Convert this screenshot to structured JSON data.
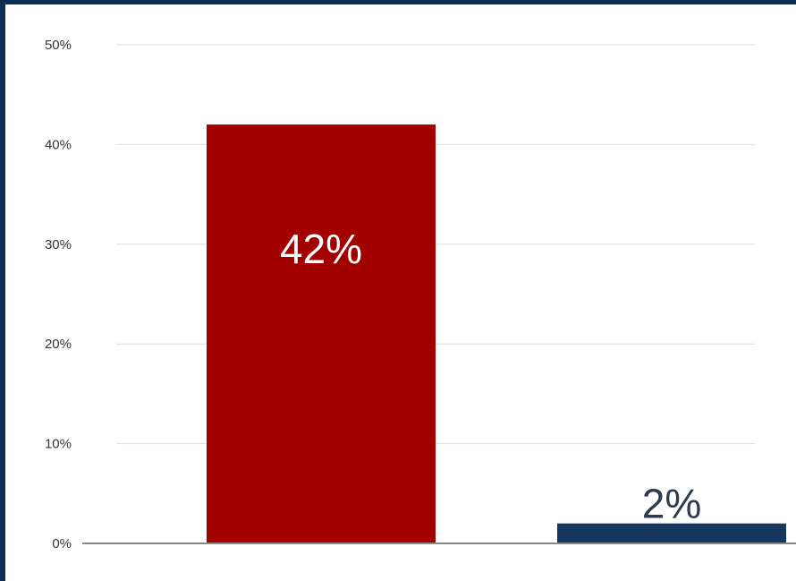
{
  "chart_data": {
    "type": "bar",
    "title": "",
    "xlabel": "",
    "ylabel": "",
    "categories": [
      "",
      ""
    ],
    "values": [
      42,
      2
    ],
    "data_labels": [
      "42%",
      "2%"
    ],
    "ylim": [
      0,
      50
    ],
    "y_ticks": [
      {
        "value": 0,
        "label": "0%"
      },
      {
        "value": 10,
        "label": "10%"
      },
      {
        "value": 20,
        "label": "20%"
      },
      {
        "value": 30,
        "label": "30%"
      },
      {
        "value": 40,
        "label": "40%"
      },
      {
        "value": 50,
        "label": "50%"
      }
    ],
    "grid": true,
    "legend": "none",
    "colors": {
      "bars": [
        "#a30000",
        "#17375e"
      ],
      "labels": [
        "#ffffff",
        "#2e3b4e"
      ],
      "grid": "#dddddd",
      "axis": "#888888",
      "frame": "#0d2f4f"
    }
  }
}
